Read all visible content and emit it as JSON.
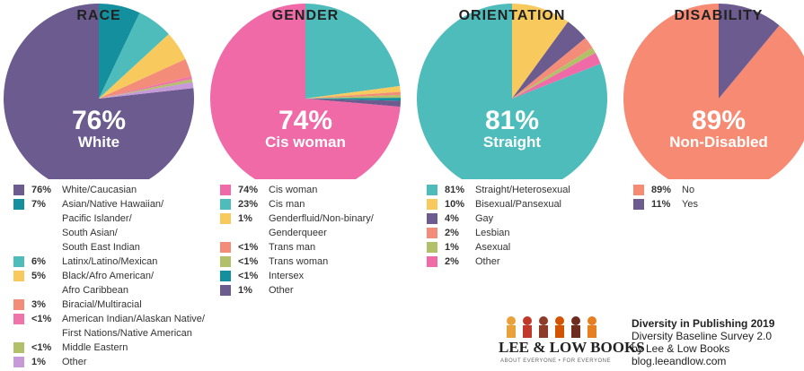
{
  "chart_data": [
    {
      "type": "pie",
      "title": "RACE",
      "categories": [
        "White/Caucasian",
        "Asian/Native Hawaiian/\nPacific Islander/\nSouth Asian/\nSouth East Indian",
        "Latinx/Latino/Mexican",
        "Black/Afro American/\nAfro Caribbean",
        "Biracial/Multiracial",
        "American Indian/Alaskan Native/\nFirst Nations/Native American",
        "Middle Eastern",
        "Other"
      ],
      "values": [
        76,
        7,
        6,
        5,
        3,
        0.5,
        0.5,
        1
      ],
      "value_labels": [
        "76%",
        "7%",
        "6%",
        "5%",
        "3%",
        "<1%",
        "<1%",
        "1%"
      ],
      "colors": [
        "#6b5b8f",
        "#138f9e",
        "#4fbcbc",
        "#f8c95c",
        "#f38c78",
        "#ef74a9",
        "#b3c06a",
        "#c69ad8"
      ],
      "center_text": "White"
    },
    {
      "type": "pie",
      "title": "GENDER",
      "categories": [
        "Cis woman",
        "Cis man",
        "Genderfluid/Non-binary/\nGenderqueer",
        "Trans man",
        "Trans woman",
        "Intersex",
        "Other"
      ],
      "values": [
        74,
        23,
        1,
        0.5,
        0.5,
        0.5,
        1
      ],
      "value_labels": [
        "74%",
        "23%",
        "1%",
        "<1%",
        "<1%",
        "<1%",
        "1%"
      ],
      "colors": [
        "#ef6aa7",
        "#4fbcbc",
        "#f8c95c",
        "#f38c78",
        "#b3c06a",
        "#138f9e",
        "#6b5b8f"
      ],
      "center_text": "Cis woman"
    },
    {
      "type": "pie",
      "title": "ORIENTATION",
      "categories": [
        "Straight/Heterosexual",
        "Bisexual/Pansexual",
        "Gay",
        "Lesbian",
        "Asexual",
        "Other"
      ],
      "values": [
        81,
        10,
        4,
        2,
        1,
        2
      ],
      "value_labels": [
        "81%",
        "10%",
        "4%",
        "2%",
        "1%",
        "2%"
      ],
      "colors": [
        "#4fbcbc",
        "#f8c95c",
        "#6b5b8f",
        "#f38c78",
        "#b3c06a",
        "#ef6aa7"
      ],
      "center_text": "Straight"
    },
    {
      "type": "pie",
      "title": "DISABILITY",
      "categories": [
        "No",
        "Yes"
      ],
      "values": [
        89,
        11
      ],
      "value_labels": [
        "89%",
        "11%"
      ],
      "colors": [
        "#f68a72",
        "#6b5b8f"
      ],
      "center_text": "Non-Disabled"
    }
  ],
  "footer": {
    "logo": "LEE & LOW BOOKS",
    "tagline": "ABOUT EVERYONE • FOR EVERYONE",
    "title": "Diversity in Publishing 2019",
    "line1": "Diversity Baseline Survey 2.0",
    "line2": "by Lee & Low Books",
    "line3": "blog.leeandlow.com"
  }
}
